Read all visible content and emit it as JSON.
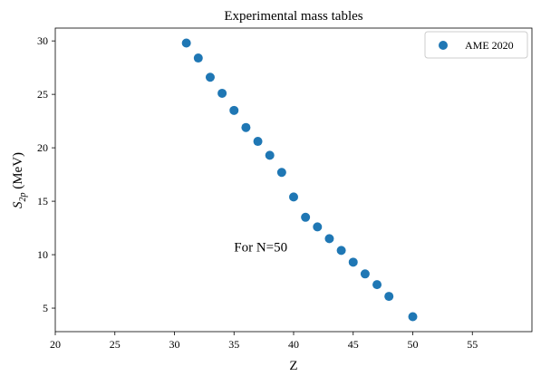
{
  "chart_data": {
    "type": "scatter",
    "title": "Experimental mass tables",
    "xlabel": "Z",
    "ylabel_main": "S",
    "ylabel_sub": "2p",
    "ylabel_unit": " (MeV)",
    "xlim": [
      20,
      60
    ],
    "ylim": [
      2.8,
      31.2
    ],
    "xticks": [
      20,
      25,
      30,
      35,
      40,
      45,
      50,
      55
    ],
    "yticks": [
      5,
      10,
      15,
      20,
      25,
      30
    ],
    "grid": false,
    "legend_position": "top-right",
    "series": [
      {
        "name": "AME 2020",
        "color": "#1f77b4",
        "x": [
          31,
          32,
          33,
          34,
          35,
          36,
          37,
          38,
          39,
          40,
          41,
          42,
          43,
          44,
          45,
          46,
          47,
          48,
          50
        ],
        "y": [
          29.8,
          28.4,
          26.6,
          25.1,
          23.5,
          21.9,
          20.6,
          19.3,
          17.7,
          15.4,
          13.5,
          12.6,
          11.5,
          10.4,
          9.3,
          8.2,
          7.2,
          6.1,
          4.2
        ]
      }
    ],
    "annotation": {
      "text": "For N=50",
      "x": 35,
      "y": 10.3
    }
  }
}
